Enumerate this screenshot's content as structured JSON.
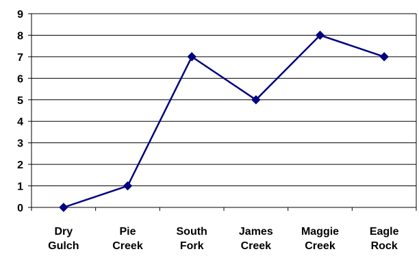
{
  "chart_data": {
    "type": "line",
    "categories": [
      [
        "Dry",
        "Gulch"
      ],
      [
        "Pie",
        "Creek"
      ],
      [
        "South",
        "Fork"
      ],
      [
        "James",
        "Creek"
      ],
      [
        "Maggie",
        "Creek"
      ],
      [
        "Eagle",
        "Rock"
      ]
    ],
    "series": [
      {
        "values": [
          0,
          1,
          7,
          5,
          8,
          7
        ]
      }
    ],
    "ylim": [
      0,
      9
    ],
    "yticks": [
      0,
      1,
      2,
      3,
      4,
      5,
      6,
      7,
      8,
      9
    ],
    "grid": true,
    "legend": "none",
    "colors": {
      "line": "#000080",
      "marker": "#000080",
      "grid": "#000000",
      "axis": "#000000"
    }
  }
}
